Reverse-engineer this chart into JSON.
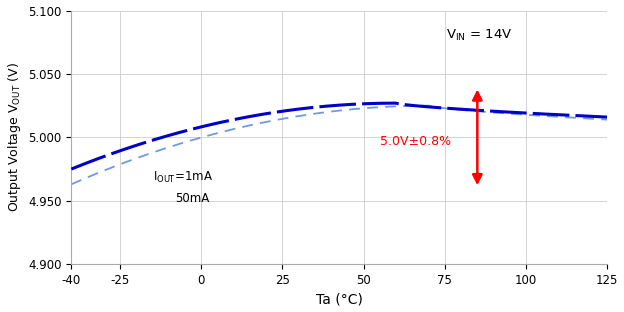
{
  "xlabel": "Ta (°C)",
  "xlim": [
    -40,
    125
  ],
  "ylim": [
    4.9,
    5.1
  ],
  "xticks": [
    -40,
    -25,
    0,
    25,
    50,
    75,
    100,
    125
  ],
  "yticks": [
    4.9,
    4.95,
    5.0,
    5.05,
    5.1
  ],
  "line_color_1ma": "#0000CC",
  "line_color_50ma": "#5588DD",
  "arrow_color": "red",
  "background_color": "#ffffff",
  "grid_color": "#cccccc",
  "vout_nominal": 5.0,
  "vout_tolerance_pct": 0.008,
  "curve_1ma_start": 4.975,
  "curve_1ma_peak": 5.027,
  "curve_1ma_peak_t": 60.0,
  "curve_1ma_end": 5.016,
  "curve_50ma_start": 4.963,
  "curve_50ma_peak": 5.025,
  "curve_50ma_peak_t": 70.0,
  "curve_50ma_end": 5.014
}
